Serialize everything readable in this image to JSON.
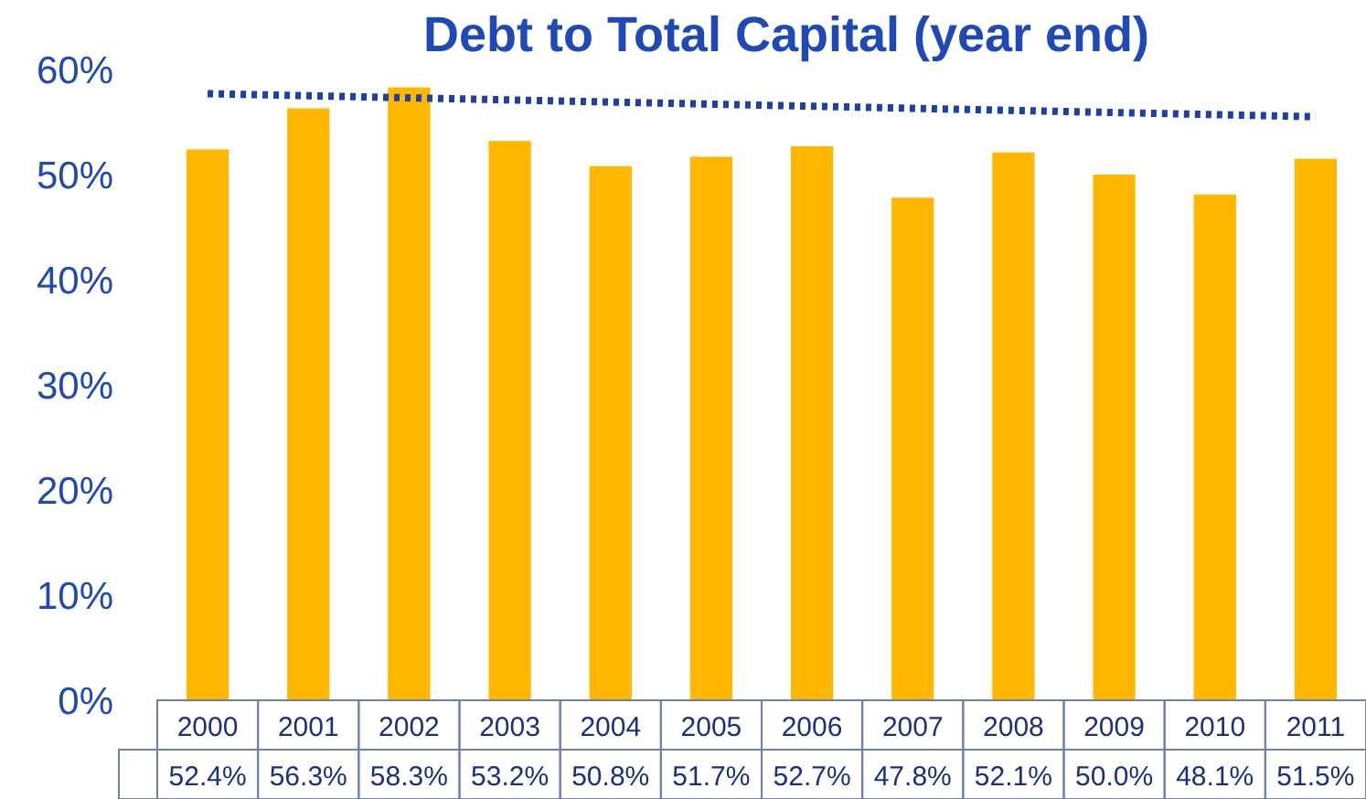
{
  "chart_data": {
    "type": "bar",
    "title": "Debt to Total Capital (year end)",
    "categories": [
      "2000",
      "2001",
      "2002",
      "2003",
      "2004",
      "2005",
      "2006",
      "2007",
      "2008",
      "2009",
      "2010",
      "2011"
    ],
    "series": [
      {
        "color": "#ffb700",
        "values": [
          52.4,
          56.3,
          58.3,
          53.2,
          50.8,
          51.7,
          52.7,
          47.8,
          52.1,
          50.0,
          48.1,
          51.5
        ],
        "value_labels": [
          "52.4%",
          "56.3%",
          "58.3%",
          "53.2%",
          "50.8%",
          "51.7%",
          "52.7%",
          "47.8%",
          "52.1%",
          "50.0%",
          "48.1%",
          "51.5%"
        ]
      },
      {
        "type": "line",
        "color": "#1f3fa8",
        "line_style": "dotted",
        "values": [
          57.7,
          57.5,
          57.3,
          57.1,
          56.9,
          56.7,
          56.5,
          56.3,
          56.1,
          55.9,
          55.7,
          55.5
        ]
      }
    ],
    "ylim": [
      0,
      60
    ],
    "yticks": [
      {
        "value": 0,
        "label": "0%"
      },
      {
        "value": 10,
        "label": "10%"
      },
      {
        "value": 20,
        "label": "20%"
      },
      {
        "value": 30,
        "label": "30%"
      },
      {
        "value": 40,
        "label": "40%"
      },
      {
        "value": 50,
        "label": "50%"
      },
      {
        "value": 60,
        "label": "60%"
      }
    ]
  }
}
